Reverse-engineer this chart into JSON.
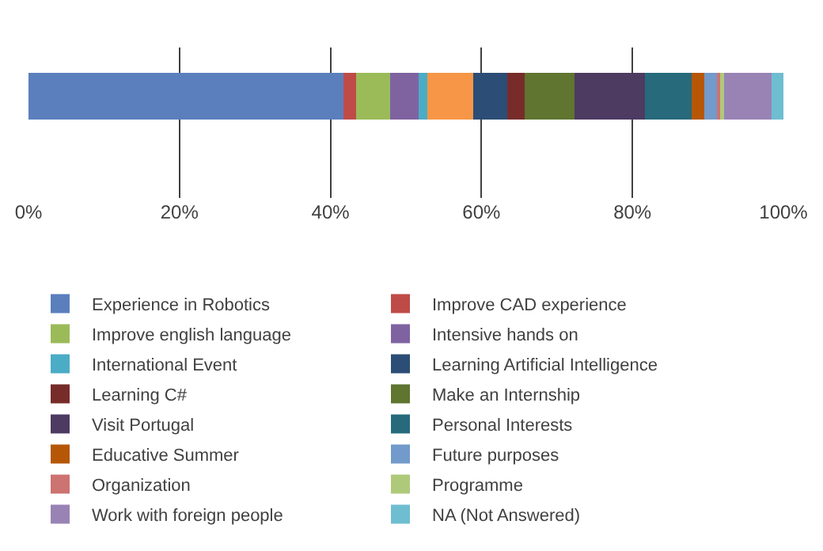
{
  "chart_data": {
    "type": "bar",
    "orientation": "horizontal",
    "stacked": true,
    "categories": [
      null
    ],
    "xlim": [
      0,
      100
    ],
    "xticks": [
      {
        "value": 0,
        "label": "0%"
      },
      {
        "value": 20,
        "label": "20%"
      },
      {
        "value": 40,
        "label": "40%"
      },
      {
        "value": 60,
        "label": "60%"
      },
      {
        "value": 80,
        "label": "80%"
      },
      {
        "value": 100,
        "label": "100%"
      }
    ],
    "grid": "x",
    "legend": "bottom",
    "series": [
      {
        "name": "Experience in Robotics",
        "color": "#5b7fbd",
        "values": [
          41.7
        ]
      },
      {
        "name": "Improve CAD experience",
        "color": "#be4b48",
        "values": [
          1.7
        ]
      },
      {
        "name": "Improve english language",
        "color": "#9bbb59",
        "values": [
          4.5
        ]
      },
      {
        "name": "Intensive hands on",
        "color": "#7f63a1",
        "values": [
          3.8
        ]
      },
      {
        "name": "International Event",
        "color": "#4bacc6",
        "values": [
          1.1
        ]
      },
      {
        "color": "#f79646",
        "values": [
          6.1
        ]
      },
      {
        "name": "Learning Artificial Intelligence",
        "color": "#2c4d75",
        "values": [
          4.5
        ]
      },
      {
        "name": "Learning C#",
        "color": "#772c2a",
        "values": [
          2.3
        ]
      },
      {
        "name": "Make an Internship",
        "color": "#5f7530",
        "values": [
          6.6
        ]
      },
      {
        "name": "Visit Portugal",
        "color": "#4d3b62",
        "values": [
          9.4
        ]
      },
      {
        "name": "Personal Interests",
        "color": "#276a7c",
        "values": [
          6.1
        ]
      },
      {
        "name": "Educative Summer",
        "color": "#b65708",
        "values": [
          1.7
        ]
      },
      {
        "name": "Future purposes",
        "color": "#729aca",
        "values": [
          1.7
        ]
      },
      {
        "name": "Organization",
        "color": "#cd7371",
        "values": [
          0.4
        ]
      },
      {
        "name": "Programme",
        "color": "#afc97a",
        "values": [
          0.5
        ]
      },
      {
        "name": "Work with foreign people",
        "color": "#9983b5",
        "values": [
          6.3
        ]
      },
      {
        "name": "NA (Not Answered)",
        "color": "#6fbdd1",
        "values": [
          1.6
        ]
      }
    ]
  }
}
